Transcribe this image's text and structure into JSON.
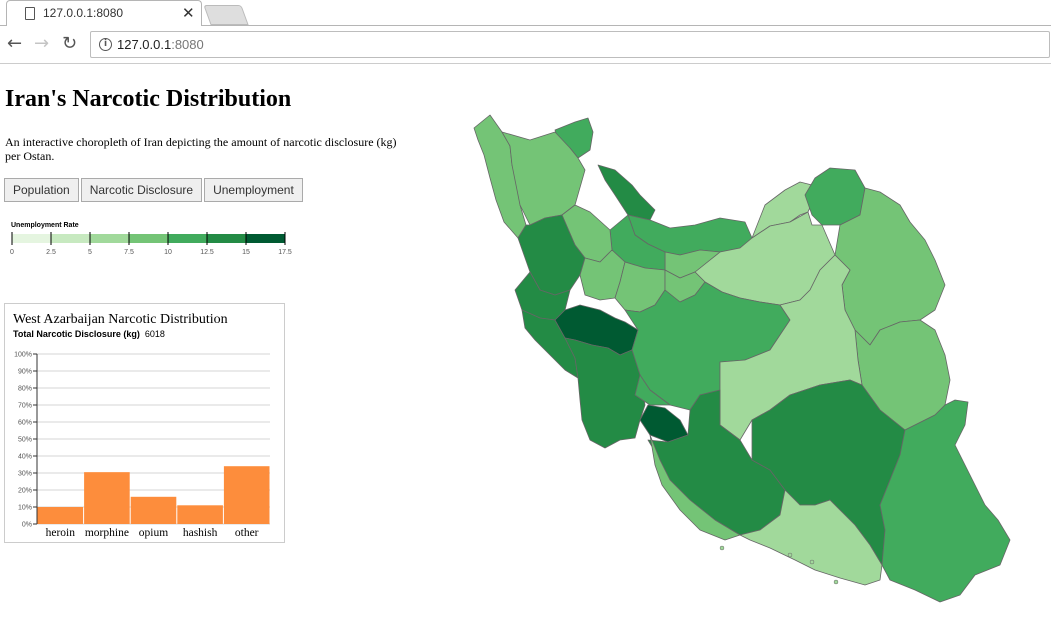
{
  "browser": {
    "tab_title": "127.0.0.1:8080",
    "close_glyph": "✕",
    "back_glyph": "←",
    "forward_glyph": "→",
    "reload_glyph": "↻",
    "url_host": "127.0.0.1",
    "url_port": ":8080"
  },
  "page": {
    "title": "Iran's Narcotic Distribution",
    "description": "An interactive choropleth of Iran depicting the amount of narcotic disclosure (kg) per Ostan.",
    "buttons": [
      {
        "label": "Population"
      },
      {
        "label": "Narcotic Disclosure"
      },
      {
        "label": "Unemployment"
      }
    ]
  },
  "legend": {
    "title": "Unemployment Rate",
    "ticks": [
      "0",
      "2.5",
      "5",
      "7.5",
      "10",
      "12.5",
      "15",
      "17.5"
    ],
    "colors": [
      "#e5f5e0",
      "#c7e9c0",
      "#a1d99b",
      "#74c476",
      "#41ab5d",
      "#238b45",
      "#005a32"
    ]
  },
  "detail": {
    "title": "West Azarbaijan Narcotic Distribution",
    "total_label": "Total Narcotic Disclosure (kg)",
    "total_value": "6018"
  },
  "chart_data": {
    "type": "bar",
    "categories": [
      "heroin",
      "morphine",
      "opium",
      "hashish",
      "other"
    ],
    "values": [
      10,
      30.5,
      16,
      11,
      34
    ],
    "ylim": [
      0,
      100
    ],
    "yticks": [
      "0%",
      "10%",
      "20%",
      "30%",
      "40%",
      "50%",
      "60%",
      "70%",
      "80%",
      "90%",
      "100%"
    ],
    "bar_color": "#fd8d3c",
    "grid": true
  },
  "map": {
    "regions": [
      {
        "name": "west-azarbaijan",
        "color": "#74c476"
      },
      {
        "name": "ardabil",
        "color": "#41ab5d"
      },
      {
        "name": "east-azarbaijan",
        "color": "#74c476"
      },
      {
        "name": "gilan",
        "color": "#238b45"
      },
      {
        "name": "mazandaran",
        "color": "#41ab5d"
      },
      {
        "name": "golestan",
        "color": "#a1d99b"
      },
      {
        "name": "north-khorasan",
        "color": "#41ab5d"
      },
      {
        "name": "razavi-khorasan",
        "color": "#74c476"
      },
      {
        "name": "south-khorasan",
        "color": "#74c476"
      },
      {
        "name": "semnan",
        "color": "#a1d99b"
      },
      {
        "name": "tehran",
        "color": "#74c476"
      },
      {
        "name": "qazvin",
        "color": "#41ab5d"
      },
      {
        "name": "zanjan",
        "color": "#74c476"
      },
      {
        "name": "kurdistan",
        "color": "#238b45"
      },
      {
        "name": "hamadan",
        "color": "#74c476"
      },
      {
        "name": "markazi",
        "color": "#74c476"
      },
      {
        "name": "qom",
        "color": "#74c476"
      },
      {
        "name": "kermanshah",
        "color": "#238b45"
      },
      {
        "name": "ilam",
        "color": "#238b45"
      },
      {
        "name": "lorestan",
        "color": "#005a32"
      },
      {
        "name": "isfahan",
        "color": "#41ab5d"
      },
      {
        "name": "yazd",
        "color": "#a1d99b"
      },
      {
        "name": "khuzestan",
        "color": "#238b45"
      },
      {
        "name": "chaharmahal",
        "color": "#41ab5d"
      },
      {
        "name": "kohgiluyeh",
        "color": "#005a32"
      },
      {
        "name": "fars",
        "color": "#238b45"
      },
      {
        "name": "bushehr",
        "color": "#74c476"
      },
      {
        "name": "kerman",
        "color": "#238b45"
      },
      {
        "name": "hormozgan",
        "color": "#a1d99b"
      },
      {
        "name": "sistan-baluchestan",
        "color": "#41ab5d"
      }
    ]
  }
}
